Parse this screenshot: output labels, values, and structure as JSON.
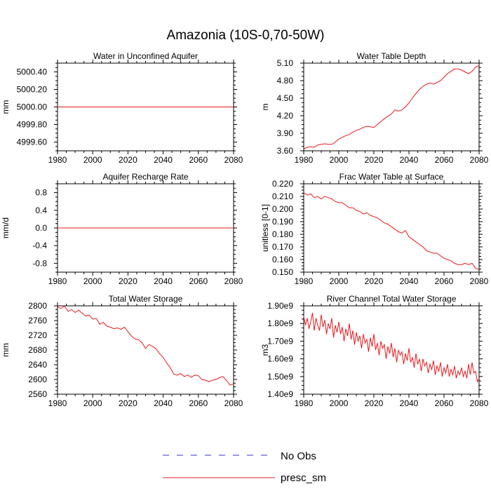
{
  "figure": {
    "title": "Amazonia (10S-0,70-50W)"
  },
  "legend": {
    "entries": [
      {
        "label": "No Obs",
        "color": "#3333cc",
        "style": "dashed"
      },
      {
        "label": "presc_sm",
        "color": "#e8191c",
        "style": "solid"
      }
    ]
  },
  "chart_data": [
    {
      "id": "water-in-unconfined-aquifer",
      "type": "line",
      "title": "Water in Unconfined Aquifer",
      "xlabel": "",
      "ylabel": "mm",
      "xlim": [
        1980,
        2080
      ],
      "ylim": [
        4999.5,
        5000.5
      ],
      "xticks": [
        1980,
        2000,
        2020,
        2040,
        2060,
        2080
      ],
      "yticks": [
        4999.6,
        4999.8,
        5000.0,
        5000.2,
        5000.4
      ],
      "ytick_labels": [
        "4999.60",
        "4999.80",
        "5000.00",
        "5000.20",
        "5000.40"
      ],
      "series": [
        {
          "name": "presc_sm",
          "color": "#e8191c",
          "x": [
            1980,
            2080
          ],
          "y": [
            5000.0,
            5000.0
          ]
        }
      ]
    },
    {
      "id": "water-table-depth",
      "type": "line",
      "title": "Water Table Depth",
      "xlabel": "",
      "ylabel": "m",
      "xlim": [
        1980,
        2080
      ],
      "ylim": [
        3.6,
        5.1
      ],
      "xticks": [
        1980,
        2000,
        2020,
        2040,
        2060,
        2080
      ],
      "yticks": [
        3.6,
        3.9,
        4.2,
        4.5,
        4.8,
        5.1
      ],
      "ytick_labels": [
        "3.60",
        "3.90",
        "4.20",
        "4.50",
        "4.80",
        "5.10"
      ],
      "series": [
        {
          "name": "presc_sm",
          "color": "#e8191c",
          "x": [
            1980,
            1982,
            1984,
            1986,
            1988,
            1990,
            1992,
            1994,
            1996,
            1998,
            2000,
            2002,
            2004,
            2006,
            2008,
            2010,
            2012,
            2014,
            2016,
            2018,
            2020,
            2022,
            2024,
            2026,
            2028,
            2030,
            2032,
            2034,
            2036,
            2038,
            2040,
            2042,
            2044,
            2046,
            2048,
            2050,
            2052,
            2054,
            2056,
            2058,
            2060,
            2062,
            2064,
            2066,
            2068,
            2070,
            2072,
            2074,
            2076,
            2078,
            2080
          ],
          "y": [
            3.63,
            3.66,
            3.67,
            3.66,
            3.7,
            3.71,
            3.72,
            3.71,
            3.71,
            3.75,
            3.8,
            3.83,
            3.86,
            3.88,
            3.92,
            3.95,
            3.97,
            4.0,
            4.02,
            4.01,
            4.0,
            4.05,
            4.1,
            4.15,
            4.19,
            4.23,
            4.3,
            4.28,
            4.3,
            4.35,
            4.42,
            4.5,
            4.58,
            4.65,
            4.7,
            4.74,
            4.76,
            4.74,
            4.77,
            4.8,
            4.86,
            4.92,
            4.96,
            5.0,
            5.0,
            4.98,
            4.95,
            4.92,
            4.96,
            5.03,
            5.06
          ]
        }
      ]
    },
    {
      "id": "aquifer-recharge-rate",
      "type": "line",
      "title": "Aquifer Recharge Rate",
      "xlabel": "",
      "ylabel": "mm/d",
      "xlim": [
        1980,
        2080
      ],
      "ylim": [
        -1.0,
        1.0
      ],
      "xticks": [
        1980,
        2000,
        2020,
        2040,
        2060,
        2080
      ],
      "yticks": [
        -0.8,
        -0.4,
        0.0,
        0.4,
        0.8
      ],
      "ytick_labels": [
        "-0.8",
        "-0.4",
        "0.0",
        "0.4",
        "0.8"
      ],
      "series": [
        {
          "name": "presc_sm",
          "color": "#e8191c",
          "x": [
            1980,
            2080
          ],
          "y": [
            0.0,
            0.0
          ]
        }
      ]
    },
    {
      "id": "frac-water-table-at-surface",
      "type": "line",
      "title": "Frac Water Table at Surface",
      "xlabel": "",
      "ylabel": "unitless [0-1]",
      "xlim": [
        1980,
        2080
      ],
      "ylim": [
        0.15,
        0.22
      ],
      "xticks": [
        1980,
        2000,
        2020,
        2040,
        2060,
        2080
      ],
      "yticks": [
        0.15,
        0.16,
        0.17,
        0.18,
        0.19,
        0.2,
        0.21,
        0.22
      ],
      "ytick_labels": [
        "0.150",
        "0.160",
        "0.170",
        "0.180",
        "0.190",
        "0.200",
        "0.210",
        "0.220"
      ],
      "series": [
        {
          "name": "presc_sm",
          "color": "#e8191c",
          "x": [
            1980,
            1982,
            1984,
            1986,
            1988,
            1990,
            1992,
            1994,
            1996,
            1998,
            2000,
            2002,
            2004,
            2006,
            2008,
            2010,
            2012,
            2014,
            2016,
            2018,
            2020,
            2022,
            2024,
            2026,
            2028,
            2030,
            2032,
            2034,
            2036,
            2038,
            2040,
            2042,
            2044,
            2046,
            2048,
            2050,
            2052,
            2054,
            2056,
            2058,
            2060,
            2062,
            2064,
            2066,
            2068,
            2070,
            2072,
            2074,
            2076,
            2078,
            2080
          ],
          "y": [
            0.213,
            0.211,
            0.212,
            0.209,
            0.21,
            0.208,
            0.21,
            0.209,
            0.208,
            0.206,
            0.205,
            0.205,
            0.203,
            0.201,
            0.201,
            0.199,
            0.198,
            0.196,
            0.197,
            0.195,
            0.194,
            0.193,
            0.191,
            0.189,
            0.188,
            0.186,
            0.184,
            0.182,
            0.181,
            0.183,
            0.178,
            0.176,
            0.174,
            0.172,
            0.17,
            0.167,
            0.166,
            0.165,
            0.165,
            0.163,
            0.161,
            0.16,
            0.159,
            0.157,
            0.156,
            0.156,
            0.157,
            0.156,
            0.157,
            0.153,
            0.152
          ]
        }
      ]
    },
    {
      "id": "total-water-storage",
      "type": "line",
      "title": "Total Water Storage",
      "xlabel": "",
      "ylabel": "mm",
      "xlim": [
        1980,
        2080
      ],
      "ylim": [
        2560,
        2800
      ],
      "xticks": [
        1980,
        2000,
        2020,
        2040,
        2060,
        2080
      ],
      "yticks": [
        2560,
        2600,
        2640,
        2680,
        2720,
        2760,
        2800
      ],
      "ytick_labels": [
        "2560",
        "2600",
        "2640",
        "2680",
        "2720",
        "2760",
        "2800"
      ],
      "series": [
        {
          "name": "presc_sm",
          "color": "#e8191c",
          "x": [
            1980,
            1982,
            1984,
            1986,
            1988,
            1990,
            1992,
            1994,
            1996,
            1998,
            2000,
            2002,
            2004,
            2006,
            2008,
            2010,
            2012,
            2014,
            2016,
            2018,
            2020,
            2022,
            2024,
            2026,
            2028,
            2030,
            2032,
            2034,
            2036,
            2038,
            2040,
            2042,
            2044,
            2046,
            2048,
            2050,
            2052,
            2054,
            2056,
            2058,
            2060,
            2062,
            2064,
            2066,
            2068,
            2070,
            2072,
            2074,
            2076,
            2078,
            2080
          ],
          "y": [
            2797,
            2793,
            2799,
            2785,
            2790,
            2782,
            2788,
            2780,
            2772,
            2775,
            2764,
            2766,
            2750,
            2755,
            2745,
            2742,
            2738,
            2740,
            2736,
            2742,
            2730,
            2718,
            2710,
            2708,
            2700,
            2684,
            2695,
            2690,
            2683,
            2670,
            2660,
            2645,
            2632,
            2615,
            2612,
            2616,
            2608,
            2612,
            2606,
            2612,
            2610,
            2600,
            2598,
            2594,
            2598,
            2600,
            2605,
            2608,
            2597,
            2585,
            2588
          ]
        }
      ]
    },
    {
      "id": "river-channel-total-water-storage",
      "type": "line",
      "title": "River Channel Total Water Storage",
      "xlabel": "",
      "ylabel": "m3",
      "xlim": [
        1980,
        2080
      ],
      "ylim": [
        1400000000.0,
        1900000000.0
      ],
      "xticks": [
        1980,
        2000,
        2020,
        2040,
        2060,
        2080
      ],
      "yticks": [
        1400000000.0,
        1500000000.0,
        1600000000.0,
        1700000000.0,
        1800000000.0,
        1900000000.0
      ],
      "ytick_labels": [
        "1.40e9",
        "1.50e9",
        "1.60e9",
        "1.70e9",
        "1.80e9",
        "1.90e9"
      ],
      "series": [
        {
          "name": "presc_sm",
          "color": "#e8191c",
          "x": [
            1980,
            1981,
            1982,
            1983,
            1984,
            1985,
            1986,
            1987,
            1988,
            1989,
            1990,
            1991,
            1992,
            1993,
            1994,
            1995,
            1996,
            1997,
            1998,
            1999,
            2000,
            2001,
            2002,
            2003,
            2004,
            2005,
            2006,
            2007,
            2008,
            2009,
            2010,
            2011,
            2012,
            2013,
            2014,
            2015,
            2016,
            2017,
            2018,
            2019,
            2020,
            2021,
            2022,
            2023,
            2024,
            2025,
            2026,
            2027,
            2028,
            2029,
            2030,
            2031,
            2032,
            2033,
            2034,
            2035,
            2036,
            2037,
            2038,
            2039,
            2040,
            2041,
            2042,
            2043,
            2044,
            2045,
            2046,
            2047,
            2048,
            2049,
            2050,
            2051,
            2052,
            2053,
            2054,
            2055,
            2056,
            2057,
            2058,
            2059,
            2060,
            2061,
            2062,
            2063,
            2064,
            2065,
            2066,
            2067,
            2068,
            2069,
            2070,
            2071,
            2072,
            2073,
            2074,
            2075,
            2076,
            2077,
            2078,
            2079,
            2080
          ],
          "y": [
            1840000000.0,
            1790000000.0,
            1830000000.0,
            1770000000.0,
            1810000000.0,
            1860000000.0,
            1760000000.0,
            1830000000.0,
            1790000000.0,
            1760000000.0,
            1850000000.0,
            1780000000.0,
            1820000000.0,
            1740000000.0,
            1800000000.0,
            1770000000.0,
            1830000000.0,
            1720000000.0,
            1790000000.0,
            1750000000.0,
            1810000000.0,
            1740000000.0,
            1780000000.0,
            1700000000.0,
            1770000000.0,
            1730000000.0,
            1800000000.0,
            1710000000.0,
            1760000000.0,
            1680000000.0,
            1750000000.0,
            1700000000.0,
            1730000000.0,
            1660000000.0,
            1740000000.0,
            1690000000.0,
            1710000000.0,
            1640000000.0,
            1720000000.0,
            1670000000.0,
            1740000000.0,
            1650000000.0,
            1690000000.0,
            1620000000.0,
            1700000000.0,
            1660000000.0,
            1680000000.0,
            1600000000.0,
            1670000000.0,
            1630000000.0,
            1690000000.0,
            1610000000.0,
            1660000000.0,
            1580000000.0,
            1650000000.0,
            1620000000.0,
            1640000000.0,
            1570000000.0,
            1630000000.0,
            1590000000.0,
            1660000000.0,
            1580000000.0,
            1610000000.0,
            1550000000.0,
            1630000000.0,
            1570000000.0,
            1600000000.0,
            1530000000.0,
            1600000000.0,
            1560000000.0,
            1580000000.0,
            1520000000.0,
            1570000000.0,
            1540000000.0,
            1590000000.0,
            1510000000.0,
            1560000000.0,
            1530000000.0,
            1580000000.0,
            1500000000.0,
            1550000000.0,
            1520000000.0,
            1570000000.0,
            1500000000.0,
            1540000000.0,
            1510000000.0,
            1560000000.0,
            1490000000.0,
            1530000000.0,
            1510000000.0,
            1550000000.0,
            1500000000.0,
            1530000000.0,
            1490000000.0,
            1570000000.0,
            1510000000.0,
            1580000000.0,
            1520000000.0,
            1530000000.0,
            1470000000.0,
            1490000000.0
          ]
        }
      ]
    }
  ]
}
